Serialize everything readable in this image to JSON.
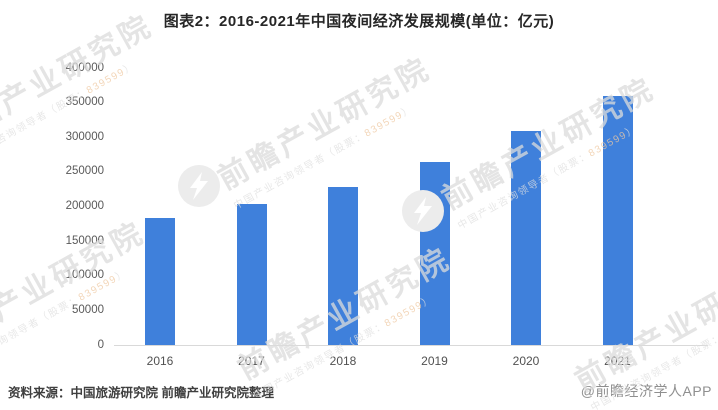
{
  "title": "图表2：2016-2021年中国夜间经济发展规模(单位：亿元)",
  "source_note": "资料来源：中国旅游研究院 前瞻产业研究院整理",
  "credit": "@前瞻经济学人APP",
  "watermark": {
    "brand": "前瞻产业研究院",
    "tagline_prefix": "中国产业咨询领导者（股票：",
    "stock_code": "839599",
    "tagline_suffix": "）"
  },
  "colors": {
    "bar": "#3f80db",
    "axis_line": "#d9d9d9",
    "tick_label": "#595959",
    "title_text": "#262626",
    "watermark_gray": "#dcdcdc",
    "watermark_accent": "#efc9a2"
  },
  "chart_data": {
    "type": "bar",
    "title": "图表2：2016-2021年中国夜间经济发展规模(单位：亿元)",
    "unit": "亿元",
    "categories": [
      "2016",
      "2017",
      "2018",
      "2019",
      "2020",
      "2021"
    ],
    "values": [
      183000,
      203000,
      228600,
      264300,
      309000,
      360000
    ],
    "xlabel": "",
    "ylabel": "",
    "ylim": [
      0,
      400000
    ],
    "yticks": [
      0,
      50000,
      100000,
      150000,
      200000,
      250000,
      300000,
      350000,
      400000
    ],
    "ytick_labels": [
      "0",
      "50000",
      "100000",
      "150000",
      "200000",
      "250000",
      "300000",
      "350000",
      "400000"
    ],
    "grid": false,
    "legend": "none",
    "bar_color": "#3f80db"
  }
}
